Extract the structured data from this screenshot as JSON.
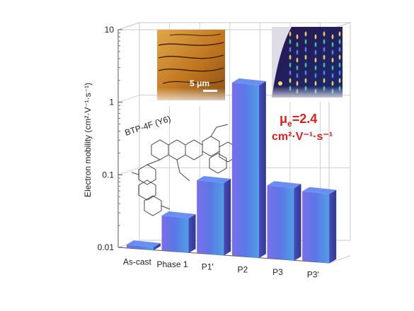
{
  "chart_data": {
    "type": "bar",
    "yscale": "log",
    "ylim": [
      0.01,
      10
    ],
    "ylabel": "Electron mobility (cm²·V⁻¹·s⁻¹)",
    "yticks": [
      "0.01",
      "0.1",
      "1",
      "10"
    ],
    "categories": [
      "As-cast",
      "Phase 1",
      "P1′",
      "P2",
      "P3",
      "P3′"
    ],
    "values": [
      0.011,
      0.03,
      0.1,
      2.4,
      0.1,
      0.09
    ],
    "grid": true
  },
  "annotations": {
    "molecule_name": "BTP-4F (Y6)",
    "afm_scale": "5 μm",
    "mobility_label": "μ",
    "mobility_sub": "e",
    "mobility_value": "=2.4",
    "mobility_units": "cm²·V⁻¹·s⁻¹"
  },
  "colors": {
    "bar_top": "#6a8ff0",
    "bar_front": "#5a5ed8",
    "bar_side": "#3f44a8",
    "highlight": "#e01e1e",
    "grid": "#c9c9c9"
  }
}
